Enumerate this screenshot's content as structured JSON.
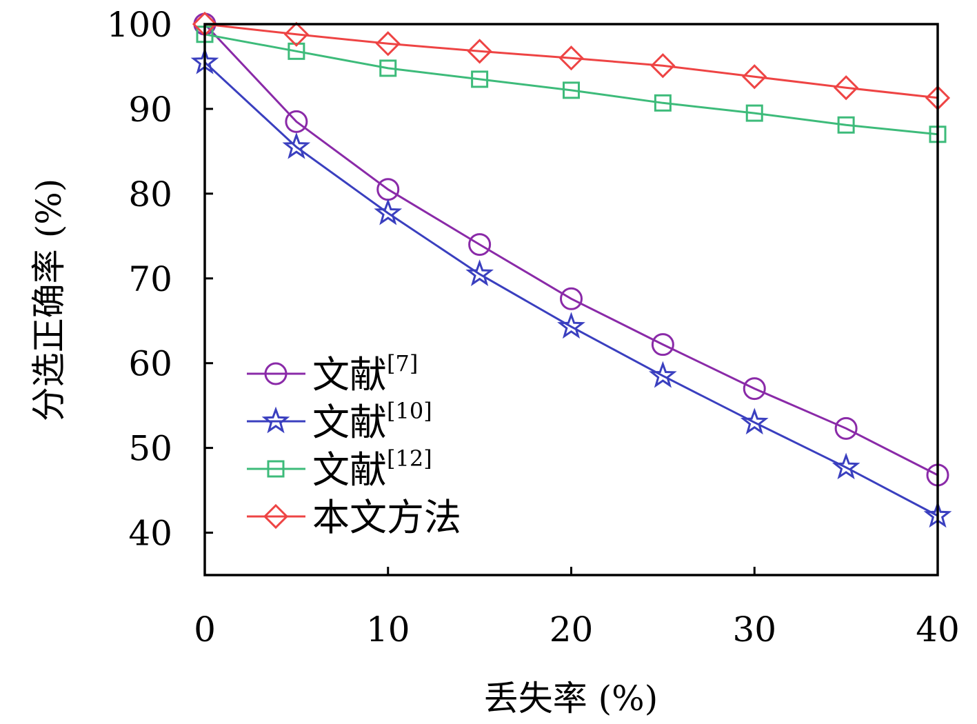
{
  "chart_data": {
    "type": "line",
    "title": "",
    "xlabel": "丢失率 (%)",
    "ylabel": "分选正确率 (%)",
    "xlim": [
      0,
      40
    ],
    "ylim": [
      35,
      100
    ],
    "xticks": [
      0,
      10,
      20,
      30,
      40
    ],
    "yticks": [
      40,
      50,
      60,
      70,
      80,
      90,
      100
    ],
    "x": [
      0,
      5,
      10,
      15,
      20,
      25,
      30,
      35,
      40
    ],
    "grid": false,
    "legend_position": "lower-left",
    "series": [
      {
        "name": "文献",
        "ref": "[7]",
        "marker": "circle",
        "color": "#8a2aa8",
        "values": [
          100,
          88.5,
          80.5,
          74,
          67.6,
          62.2,
          57,
          52.3,
          46.8
        ]
      },
      {
        "name": "文献",
        "ref": "[10]",
        "marker": "star",
        "color": "#3a3fbf",
        "values": [
          95.5,
          85.5,
          77.7,
          70.5,
          64.3,
          58.5,
          53,
          47.7,
          42
        ]
      },
      {
        "name": "文献",
        "ref": "[12]",
        "marker": "square",
        "color": "#3dbb7a",
        "values": [
          98.8,
          96.8,
          94.8,
          93.5,
          92.2,
          90.7,
          89.5,
          88.1,
          87
        ]
      },
      {
        "name": "本文方法",
        "ref": "",
        "marker": "diamond",
        "color": "#ee4444",
        "values": [
          100,
          98.8,
          97.7,
          96.8,
          96,
          95.1,
          93.8,
          92.5,
          91.3
        ]
      }
    ]
  }
}
